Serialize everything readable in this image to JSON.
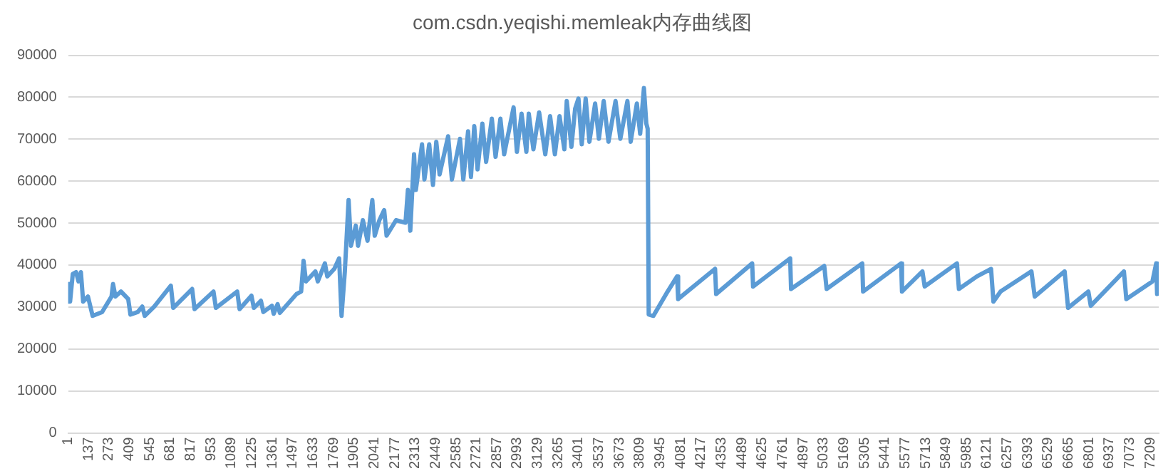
{
  "chart_data": {
    "type": "line",
    "title": "com.csdn.yeqishi.memleak内存曲线图",
    "x": [
      1,
      8,
      14,
      32,
      54,
      70,
      86,
      101,
      133,
      164,
      227,
      290,
      300,
      316,
      353,
      401,
      416,
      464,
      495,
      511,
      574,
      685,
      701,
      827,
      843,
      969,
      985,
      1127,
      1143,
      1222,
      1238,
      1285,
      1301,
      1358,
      1370,
      1396,
      1411,
      1522,
      1553,
      1569,
      1585,
      1648,
      1664,
      1711,
      1727,
      1774,
      1806,
      1822,
      1844,
      1869,
      1885,
      1917,
      1932,
      1964,
      1995,
      2027,
      2043,
      2074,
      2106,
      2122,
      2185,
      2248,
      2264,
      2280,
      2305,
      2317,
      2358,
      2374,
      2406,
      2431,
      2453,
      2475,
      2532,
      2557,
      2611,
      2633,
      2665,
      2684,
      2706,
      2728,
      2760,
      2785,
      2823,
      2848,
      2880,
      2905,
      2968,
      2990,
      3021,
      3053,
      3069,
      3100,
      3138,
      3179,
      3211,
      3243,
      3274,
      3306,
      3322,
      3353,
      3378,
      3400,
      3422,
      3448,
      3473,
      3511,
      3536,
      3568,
      3600,
      3647,
      3679,
      3726,
      3748,
      3789,
      3811,
      3836,
      3852,
      3861,
      3868,
      3899,
      3994,
      4057,
      4064,
      4310,
      4317,
      4557,
      4563,
      4810,
      4816,
      5037,
      5053,
      5290,
      5296,
      5549,
      5555,
      5691,
      5706,
      5921,
      5934,
      6054,
      6148,
      6164,
      6212,
      6417,
      6439,
      6638,
      6661,
      6796,
      6812,
      7033,
      7049,
      7223,
      7248,
      7254
    ],
    "series": [
      {
        "color": "#5b9bd5",
        "values": [
          31300,
          35500,
          31300,
          37900,
          38300,
          36100,
          38300,
          31300,
          32500,
          27900,
          28800,
          32500,
          35500,
          32500,
          33700,
          31900,
          28200,
          28800,
          30100,
          27900,
          30100,
          35100,
          29800,
          34300,
          29500,
          33700,
          29800,
          33700,
          29500,
          32700,
          29800,
          31500,
          28800,
          30300,
          28400,
          30700,
          28600,
          33100,
          33700,
          41000,
          36100,
          38500,
          36100,
          40400,
          37300,
          39100,
          41600,
          27900,
          38500,
          55500,
          44600,
          49400,
          44600,
          50700,
          45800,
          55500,
          47000,
          50700,
          53100,
          47000,
          50700,
          50100,
          57900,
          48200,
          66400,
          57900,
          68800,
          60400,
          68800,
          59100,
          69400,
          61600,
          70700,
          60400,
          70100,
          60400,
          71900,
          61000,
          73100,
          62800,
          73700,
          64600,
          74900,
          65800,
          74900,
          66400,
          77600,
          67000,
          76100,
          67000,
          76100,
          67600,
          76400,
          66400,
          75500,
          66400,
          75500,
          67600,
          79100,
          68200,
          77300,
          79700,
          68800,
          79700,
          69400,
          78500,
          70100,
          79100,
          69400,
          79100,
          70100,
          79100,
          69400,
          78500,
          71300,
          82200,
          73700,
          72500,
          28200,
          27900,
          33700,
          37300,
          31900,
          39100,
          33100,
          40400,
          34900,
          41600,
          34300,
          39800,
          34300,
          40400,
          33700,
          40400,
          33700,
          38500,
          34900,
          40400,
          34300,
          37300,
          39100,
          31300,
          33700,
          38500,
          32500,
          38500,
          29800,
          33700,
          30300,
          38500,
          31900,
          36100,
          40400,
          33100
        ]
      }
    ],
    "xlim": [
      1,
      7265
    ],
    "xticks": [
      1,
      137,
      273,
      409,
      545,
      681,
      817,
      953,
      1089,
      1225,
      1361,
      1497,
      1633,
      1769,
      1905,
      2041,
      2177,
      2313,
      2449,
      2585,
      2721,
      2857,
      2993,
      3129,
      3265,
      3401,
      3537,
      3673,
      3809,
      3945,
      4081,
      4217,
      4353,
      4489,
      4625,
      4761,
      4897,
      5033,
      5169,
      5305,
      5441,
      5577,
      5713,
      5849,
      5985,
      6121,
      6257,
      6393,
      6529,
      6665,
      6801,
      6937,
      7073,
      7209
    ],
    "ylim": [
      0,
      90000
    ],
    "yticks": [
      0,
      10000,
      20000,
      30000,
      40000,
      50000,
      60000,
      70000,
      80000,
      90000
    ],
    "grid": "y",
    "legend": false,
    "marker": "none",
    "line_style": "solid"
  }
}
